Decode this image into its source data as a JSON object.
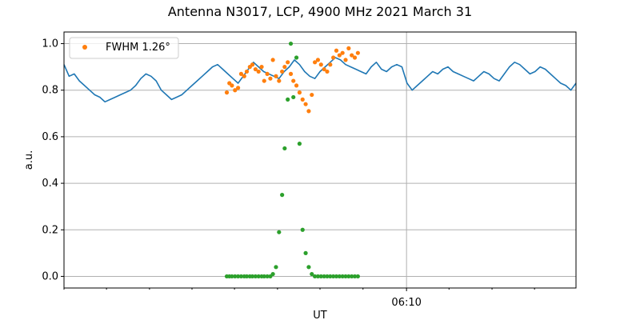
{
  "chart_data": {
    "type": "line",
    "title": "Antenna N3017, LCP, 4900 MHz 2021 March 31",
    "xlabel": "UT",
    "ylabel": "a.u.",
    "xlim": [
      0,
      100
    ],
    "ylim": [
      -0.05,
      1.05
    ],
    "yticks": [
      0.0,
      0.2,
      0.4,
      0.6,
      0.8,
      1.0
    ],
    "ytick_labels": [
      "0.0",
      "0.2",
      "0.4",
      "0.6",
      "0.8",
      "1.0"
    ],
    "major_xticks": [
      {
        "x": 66.9,
        "label": "06:10"
      }
    ],
    "minor_xticks": [
      0,
      8.3,
      16.7,
      25,
      33.3,
      41.7,
      50,
      58.4,
      75.2,
      83.6,
      91.9
    ],
    "grid": true,
    "legend": {
      "placement": "top-left",
      "entries": [
        {
          "label": "FWHM 1.26°",
          "color": "#ff7f0e",
          "marker": "dot"
        }
      ]
    },
    "series": [
      {
        "kind": "line",
        "color": "#1f77b4",
        "x": [
          0.0,
          1.0,
          2.0,
          3.0,
          4.0,
          5.0,
          6.0,
          7.0,
          8.0,
          9.0,
          10.0,
          11.0,
          12.0,
          13.0,
          14.0,
          15.0,
          16.0,
          17.0,
          18.0,
          19.0,
          20.0,
          21.0,
          22.0,
          23.0,
          24.0,
          25.0,
          26.0,
          27.0,
          28.0,
          29.0,
          30.0,
          31.0,
          32.0,
          33.0,
          34.0,
          35.0,
          36.0,
          37.0,
          38.0,
          39.0,
          40.0,
          41.0,
          42.0,
          43.0,
          44.0,
          45.0,
          46.0,
          47.0,
          48.0,
          49.0,
          50.0,
          51.0,
          52.0,
          53.0,
          54.0,
          55.0,
          56.0,
          57.0,
          58.0,
          59.0,
          60.0,
          61.0,
          62.0,
          63.0,
          64.0,
          65.0,
          66.0,
          67.0,
          68.0,
          69.0,
          70.0,
          71.0,
          72.0,
          73.0,
          74.0,
          75.0,
          76.0,
          77.0,
          78.0,
          79.0,
          80.0,
          81.0,
          82.0,
          83.0,
          84.0,
          85.0,
          86.0,
          87.0,
          88.0,
          89.0,
          90.0,
          91.0,
          92.0,
          93.0,
          94.0,
          95.0,
          96.0,
          97.0,
          98.0,
          99.0,
          100.0
        ],
        "y": [
          0.91,
          0.86,
          0.87,
          0.84,
          0.82,
          0.8,
          0.78,
          0.77,
          0.75,
          0.76,
          0.77,
          0.78,
          0.79,
          0.8,
          0.82,
          0.85,
          0.87,
          0.86,
          0.84,
          0.8,
          0.78,
          0.76,
          0.77,
          0.78,
          0.8,
          0.82,
          0.84,
          0.86,
          0.88,
          0.9,
          0.91,
          0.89,
          0.87,
          0.85,
          0.83,
          0.86,
          0.89,
          0.92,
          0.9,
          0.88,
          0.87,
          0.86,
          0.85,
          0.88,
          0.9,
          0.93,
          0.91,
          0.88,
          0.86,
          0.85,
          0.88,
          0.9,
          0.92,
          0.94,
          0.93,
          0.91,
          0.9,
          0.89,
          0.88,
          0.87,
          0.9,
          0.92,
          0.89,
          0.88,
          0.9,
          0.91,
          0.9,
          0.83,
          0.8,
          0.82,
          0.84,
          0.86,
          0.88,
          0.87,
          0.89,
          0.9,
          0.88,
          0.87,
          0.86,
          0.85,
          0.84,
          0.86,
          0.88,
          0.87,
          0.85,
          0.84,
          0.87,
          0.9,
          0.92,
          0.91,
          0.89,
          0.87,
          0.88,
          0.9,
          0.89,
          0.87,
          0.85,
          0.83,
          0.82,
          0.8,
          0.83
        ]
      },
      {
        "kind": "scatter",
        "color": "#ff7f0e",
        "x": [
          31.8,
          32.3,
          32.8,
          33.4,
          34.0,
          34.6,
          35.2,
          35.7,
          36.3,
          36.8,
          37.4,
          38.0,
          38.6,
          39.1,
          39.7,
          40.3,
          40.8,
          41.4,
          42.0,
          42.6,
          43.1,
          43.7,
          44.3,
          44.8,
          45.4,
          46.0,
          46.6,
          47.2,
          47.8,
          48.4,
          49.0,
          49.6,
          50.2,
          50.8,
          51.4,
          52.0,
          52.6,
          53.2,
          53.8,
          54.4,
          55.0,
          55.6,
          56.2,
          56.8,
          57.4
        ],
        "y": [
          0.79,
          0.83,
          0.82,
          0.8,
          0.81,
          0.87,
          0.86,
          0.88,
          0.9,
          0.91,
          0.89,
          0.88,
          0.9,
          0.84,
          0.87,
          0.85,
          0.93,
          0.86,
          0.84,
          0.88,
          0.9,
          0.92,
          0.87,
          0.84,
          0.82,
          0.79,
          0.76,
          0.74,
          0.71,
          0.78,
          0.92,
          0.93,
          0.91,
          0.89,
          0.88,
          0.91,
          0.94,
          0.97,
          0.95,
          0.96,
          0.93,
          0.98,
          0.95,
          0.94,
          0.96
        ]
      },
      {
        "kind": "scatter",
        "color": "#2ca02c",
        "x": [
          31.8,
          32.3,
          32.8,
          33.4,
          34.0,
          34.6,
          35.2,
          35.7,
          36.3,
          36.8,
          37.4,
          38.0,
          38.6,
          39.1,
          39.7,
          40.3,
          40.8,
          41.4,
          42.0,
          42.6,
          43.1,
          43.7,
          44.3,
          44.8,
          45.4,
          46.0,
          46.6,
          47.2,
          47.8,
          48.4,
          49.0,
          49.6,
          50.2,
          50.8,
          51.4,
          52.0,
          52.6,
          53.2,
          53.8,
          54.4,
          55.0,
          55.6,
          56.2,
          56.8,
          57.4
        ],
        "y": [
          0.0,
          0.0,
          0.0,
          0.0,
          0.0,
          0.0,
          0.0,
          0.0,
          0.0,
          0.0,
          0.0,
          0.0,
          0.0,
          0.0,
          0.0,
          0.0,
          0.01,
          0.04,
          0.19,
          0.35,
          0.55,
          0.76,
          1.0,
          0.77,
          0.94,
          0.57,
          0.2,
          0.1,
          0.04,
          0.01,
          0.0,
          0.0,
          0.0,
          0.0,
          0.0,
          0.0,
          0.0,
          0.0,
          0.0,
          0.0,
          0.0,
          0.0,
          0.0,
          0.0,
          0.0
        ]
      }
    ]
  }
}
